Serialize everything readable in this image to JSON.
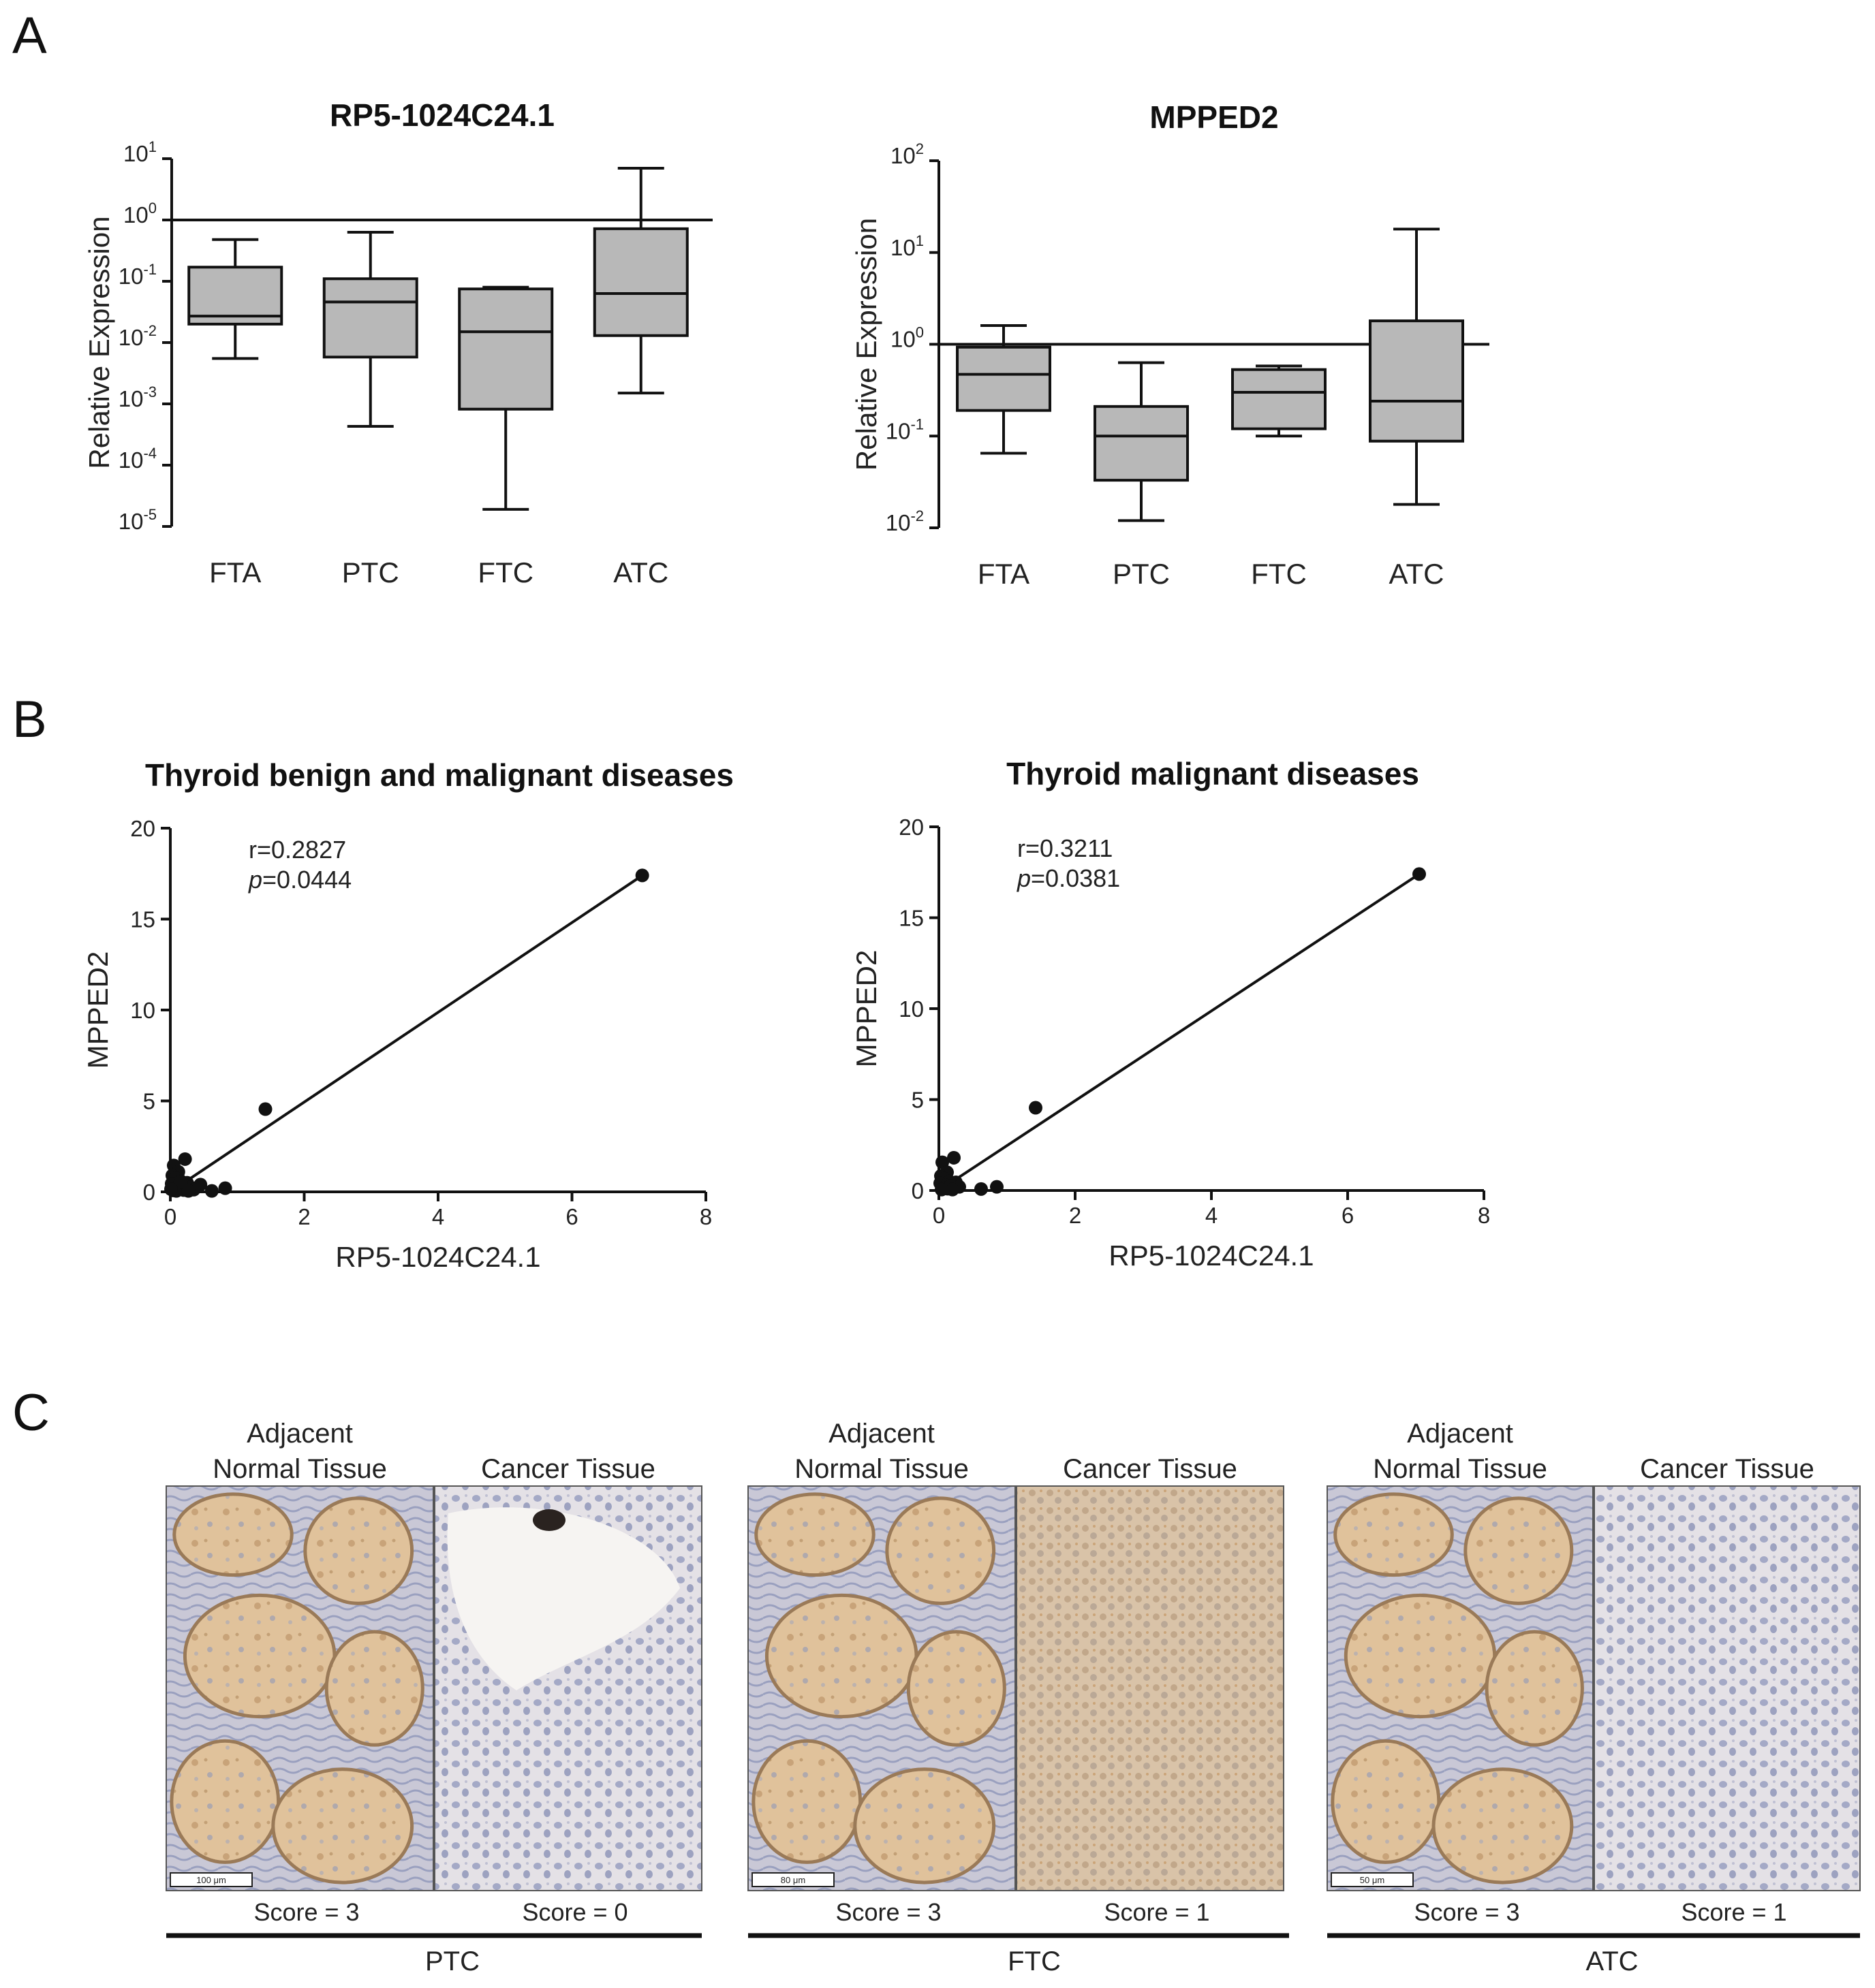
{
  "panels": {
    "a": "A",
    "b": "B",
    "c": "C"
  },
  "chart_data": [
    {
      "type": "box",
      "title": "RP5-1024C24.1",
      "ylabel": "Relative Expression",
      "yscale": "log",
      "ylim": [
        1e-05,
        10
      ],
      "yticks": [
        {
          "base": "10",
          "exp": "1",
          "value": 10
        },
        {
          "base": "10",
          "exp": "0",
          "value": 1
        },
        {
          "base": "10",
          "exp": "-1",
          "value": 0.1
        },
        {
          "base": "10",
          "exp": "-2",
          "value": 0.01
        },
        {
          "base": "10",
          "exp": "-3",
          "value": 0.001
        },
        {
          "base": "10",
          "exp": "-4",
          "value": 0.0001
        },
        {
          "base": "10",
          "exp": "-5",
          "value": 1e-05
        }
      ],
      "reference_line": 1,
      "categories": [
        "FTA",
        "PTC",
        "FTC",
        "ATC"
      ],
      "boxes": [
        {
          "min": 0.0055,
          "q1": 0.02,
          "median": 0.027,
          "q3": 0.17,
          "max": 0.48
        },
        {
          "min": 0.00043,
          "q1": 0.0058,
          "median": 0.046,
          "q3": 0.11,
          "max": 0.63
        },
        {
          "min": 1.9e-05,
          "q1": 0.00082,
          "median": 0.015,
          "q3": 0.075,
          "max": 0.08
        },
        {
          "min": 0.0015,
          "q1": 0.013,
          "median": 0.063,
          "q3": 0.72,
          "max": 7.0
        }
      ]
    },
    {
      "type": "box",
      "title": "MPPED2",
      "ylabel": "Relative Expression",
      "yscale": "log",
      "ylim": [
        0.01,
        100
      ],
      "yticks": [
        {
          "base": "10",
          "exp": "2",
          "value": 100
        },
        {
          "base": "10",
          "exp": "1",
          "value": 10
        },
        {
          "base": "10",
          "exp": "0",
          "value": 1
        },
        {
          "base": "10",
          "exp": "-1",
          "value": 0.1
        },
        {
          "base": "10",
          "exp": "-2",
          "value": 0.01
        }
      ],
      "reference_line": 1,
      "categories": [
        "FTA",
        "PTC",
        "FTC",
        "ATC"
      ],
      "boxes": [
        {
          "min": 0.065,
          "q1": 0.19,
          "median": 0.47,
          "q3": 0.93,
          "max": 1.6
        },
        {
          "min": 0.012,
          "q1": 0.033,
          "median": 0.1,
          "q3": 0.21,
          "max": 0.63
        },
        {
          "min": 0.1,
          "q1": 0.12,
          "median": 0.3,
          "q3": 0.53,
          "max": 0.58
        },
        {
          "min": 0.018,
          "q1": 0.088,
          "median": 0.24,
          "q3": 1.8,
          "max": 18.0
        }
      ]
    },
    {
      "type": "scatter",
      "title": "Thyroid benign and malignant diseases",
      "xlabel": "RP5-1024C24.1",
      "ylabel": "MPPED2",
      "xlim": [
        0,
        8
      ],
      "ylim": [
        0,
        20
      ],
      "xticks": [
        0,
        2,
        4,
        6,
        8
      ],
      "yticks": [
        0,
        5,
        10,
        15,
        20
      ],
      "r_text": "r=0.2827",
      "p_italic": "p",
      "p_value": "=0.0444",
      "fit": {
        "x0": 0,
        "y0": 0.0,
        "x1": 7.05,
        "y1": 17.4
      },
      "points": [
        {
          "x": 7.05,
          "y": 17.4
        },
        {
          "x": 1.42,
          "y": 4.55
        },
        {
          "x": 0.22,
          "y": 1.8
        },
        {
          "x": 0.05,
          "y": 1.45
        },
        {
          "x": 0.12,
          "y": 1.1
        },
        {
          "x": 0.03,
          "y": 0.9
        },
        {
          "x": 0.08,
          "y": 0.75
        },
        {
          "x": 0.15,
          "y": 0.6
        },
        {
          "x": 0.25,
          "y": 0.5
        },
        {
          "x": 0.02,
          "y": 0.45
        },
        {
          "x": 0.1,
          "y": 0.35
        },
        {
          "x": 0.18,
          "y": 0.3
        },
        {
          "x": 0.3,
          "y": 0.25
        },
        {
          "x": 0.45,
          "y": 0.4
        },
        {
          "x": 0.06,
          "y": 0.2
        },
        {
          "x": 0.13,
          "y": 0.15
        },
        {
          "x": 0.2,
          "y": 0.1
        },
        {
          "x": 0.04,
          "y": 0.08
        },
        {
          "x": 0.35,
          "y": 0.12
        },
        {
          "x": 0.62,
          "y": 0.05
        },
        {
          "x": 0.82,
          "y": 0.2
        },
        {
          "x": 0.09,
          "y": 0.05
        },
        {
          "x": 0.27,
          "y": 0.05
        },
        {
          "x": 0.16,
          "y": 0.55
        },
        {
          "x": 0.01,
          "y": 0.15
        }
      ]
    },
    {
      "type": "scatter",
      "title": "Thyroid malignant diseases",
      "xlabel": "RP5-1024C24.1",
      "ylabel": "MPPED2",
      "xlim": [
        0,
        8
      ],
      "ylim": [
        0,
        20
      ],
      "xticks": [
        0,
        2,
        4,
        6,
        8
      ],
      "yticks": [
        0,
        5,
        10,
        15,
        20
      ],
      "r_text": "r=0.3211",
      "p_italic": "p",
      "p_value": "=0.0381",
      "fit": {
        "x0": 0,
        "y0": 0.0,
        "x1": 7.05,
        "y1": 17.4
      },
      "points": [
        {
          "x": 7.05,
          "y": 17.4
        },
        {
          "x": 1.42,
          "y": 4.55
        },
        {
          "x": 0.22,
          "y": 1.8
        },
        {
          "x": 0.05,
          "y": 1.55
        },
        {
          "x": 0.12,
          "y": 1.0
        },
        {
          "x": 0.03,
          "y": 0.8
        },
        {
          "x": 0.08,
          "y": 0.65
        },
        {
          "x": 0.15,
          "y": 0.5
        },
        {
          "x": 0.25,
          "y": 0.45
        },
        {
          "x": 0.02,
          "y": 0.4
        },
        {
          "x": 0.1,
          "y": 0.3
        },
        {
          "x": 0.18,
          "y": 0.25
        },
        {
          "x": 0.3,
          "y": 0.2
        },
        {
          "x": 0.06,
          "y": 0.15
        },
        {
          "x": 0.13,
          "y": 0.1
        },
        {
          "x": 0.62,
          "y": 0.08
        },
        {
          "x": 0.85,
          "y": 0.2
        },
        {
          "x": 0.2,
          "y": 0.05
        },
        {
          "x": 0.04,
          "y": 0.05
        }
      ]
    }
  ],
  "ihc": {
    "adjacent_line1": "Adjacent",
    "adjacent_line2": "Normal Tissue",
    "cancer_label": "Cancer Tissue",
    "groups": [
      {
        "name": "PTC",
        "score_normal": "Score = 3",
        "score_cancer": "Score = 0",
        "scale": "100 μm"
      },
      {
        "name": "FTC",
        "score_normal": "Score = 3",
        "score_cancer": "Score = 1",
        "scale": "80 μm"
      },
      {
        "name": "ATC",
        "score_normal": "Score = 3",
        "score_cancer": "Score = 1",
        "scale": "50 μm"
      }
    ]
  },
  "colors": {
    "box_fill": "#b8b8b8",
    "ink": "#111111",
    "stain_brown": "#c89a6a",
    "stain_light": "#e9d8c2",
    "hematoxylin": "#8a93b8"
  }
}
